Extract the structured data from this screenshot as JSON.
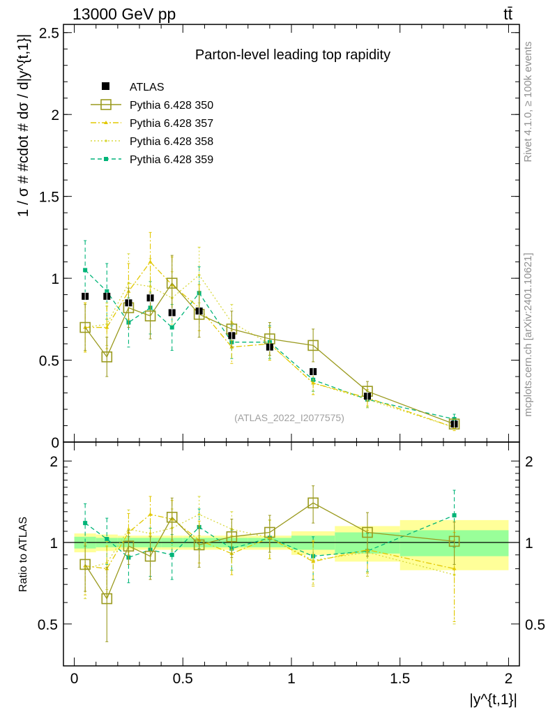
{
  "header": {
    "left": "13000 GeV pp",
    "right": "tt̄"
  },
  "chart_data": {
    "type": "scatter",
    "title": "Parton-level leading top rapidity",
    "xlabel": "|y^{t,1}|",
    "ylabel": "1 / σ # #cdot # dσ / d|y^{t,1}|",
    "ratio_ylabel": "Ratio to ATLAS",
    "watermark": "(ATLAS_2022_I2077575)",
    "side_text_top": "Rivet 4.1.0, ≥ 100k events",
    "side_text_bottom": "mcplots.cern.ch [arXiv:2401.10621]",
    "xlim": [
      -0.05,
      2.05
    ],
    "ylim": [
      0,
      2.55
    ],
    "ratio_ylim": [
      0.35,
      2.35
    ],
    "x_ticks": [
      "0",
      "0.5",
      "1",
      "1.5",
      "2"
    ],
    "y_ticks": [
      "0",
      "0.5",
      "1",
      "1.5",
      "2",
      "2.5"
    ],
    "ratio_ticks": [
      "0.5",
      "1",
      "2"
    ],
    "bins": [
      [
        0,
        0.1
      ],
      [
        0.1,
        0.2
      ],
      [
        0.2,
        0.3
      ],
      [
        0.3,
        0.4
      ],
      [
        0.4,
        0.5
      ],
      [
        0.5,
        0.65
      ],
      [
        0.65,
        0.8
      ],
      [
        0.8,
        1.0
      ],
      [
        1.0,
        1.2
      ],
      [
        1.2,
        1.5
      ],
      [
        1.5,
        2.0
      ]
    ],
    "x": [
      0.05,
      0.15,
      0.25,
      0.35,
      0.45,
      0.575,
      0.725,
      0.9,
      1.1,
      1.35,
      1.75
    ],
    "data": {
      "name": "ATLAS",
      "values": [
        0.89,
        0.89,
        0.85,
        0.88,
        0.79,
        0.8,
        0.65,
        0.58,
        0.43,
        0.28,
        0.11
      ],
      "ratio_band_inner": [
        0.05,
        0.04,
        0.04,
        0.04,
        0.04,
        0.04,
        0.04,
        0.04,
        0.06,
        0.09,
        0.11
      ],
      "ratio_band_outer": [
        0.08,
        0.07,
        0.06,
        0.06,
        0.06,
        0.06,
        0.06,
        0.06,
        0.1,
        0.15,
        0.21
      ]
    },
    "series": [
      {
        "name": "Pythia 6.428 350",
        "color": "#9a9a1e",
        "style": "solid",
        "marker": "open-square",
        "values": [
          0.7,
          0.52,
          0.82,
          0.77,
          0.97,
          0.78,
          0.69,
          0.63,
          0.59,
          0.31,
          0.11
        ],
        "errors": [
          0.14,
          0.12,
          0.12,
          0.14,
          0.17,
          0.14,
          0.11,
          0.1,
          0.1,
          0.06,
          0.02
        ],
        "ratio": [
          0.83,
          0.62,
          0.97,
          0.89,
          1.24,
          0.98,
          1.05,
          1.09,
          1.4,
          1.09,
          1.01
        ],
        "ratio_errors": [
          0.17,
          0.19,
          0.14,
          0.16,
          0.22,
          0.17,
          0.17,
          0.17,
          0.22,
          0.2,
          0.18
        ]
      },
      {
        "name": "Pythia 6.428 357",
        "color": "#e2c800",
        "style": "dashdot",
        "marker": "small-triangle",
        "values": [
          0.7,
          0.7,
          0.92,
          1.1,
          0.96,
          0.82,
          0.58,
          0.6,
          0.36,
          0.27,
          0.09
        ],
        "errors": [
          0.15,
          0.13,
          0.17,
          0.18,
          0.17,
          0.14,
          0.1,
          0.1,
          0.07,
          0.05,
          0.02
        ],
        "ratio": [
          0.82,
          0.8,
          1.09,
          1.27,
          1.22,
          1.02,
          0.91,
          1.04,
          0.85,
          0.94,
          0.8
        ],
        "ratio_errors": [
          0.18,
          0.17,
          0.19,
          0.21,
          0.21,
          0.18,
          0.15,
          0.17,
          0.16,
          0.17,
          0.29
        ]
      },
      {
        "name": "Pythia 6.428 358",
        "color": "#d8d83c",
        "style": "dotted",
        "marker": "dot",
        "values": [
          0.7,
          0.72,
          0.97,
          0.95,
          0.88,
          1.02,
          0.73,
          0.6,
          0.36,
          0.26,
          0.09
        ],
        "errors": [
          0.15,
          0.13,
          0.18,
          0.17,
          0.16,
          0.17,
          0.11,
          0.1,
          0.07,
          0.05,
          0.02
        ],
        "ratio": [
          0.8,
          0.84,
          1.12,
          1.08,
          1.13,
          1.27,
          1.12,
          1.04,
          0.86,
          0.92,
          0.76
        ],
        "ratio_errors": [
          0.18,
          0.17,
          0.2,
          0.19,
          0.2,
          0.21,
          0.18,
          0.17,
          0.16,
          0.17,
          0.26
        ]
      },
      {
        "name": "Pythia 6.428 359",
        "color": "#00b478",
        "style": "dashed",
        "marker": "filled-square",
        "values": [
          1.05,
          0.92,
          0.73,
          0.82,
          0.7,
          0.91,
          0.61,
          0.61,
          0.38,
          0.26,
          0.14
        ],
        "errors": [
          0.18,
          0.17,
          0.15,
          0.16,
          0.14,
          0.16,
          0.1,
          0.1,
          0.07,
          0.05,
          0.03
        ],
        "ratio": [
          1.18,
          1.03,
          0.88,
          0.94,
          0.9,
          1.14,
          0.95,
          1.04,
          0.89,
          0.93,
          1.26
        ],
        "ratio_errors": [
          0.21,
          0.2,
          0.17,
          0.19,
          0.17,
          0.19,
          0.16,
          0.17,
          0.16,
          0.15,
          0.3
        ]
      }
    ]
  }
}
